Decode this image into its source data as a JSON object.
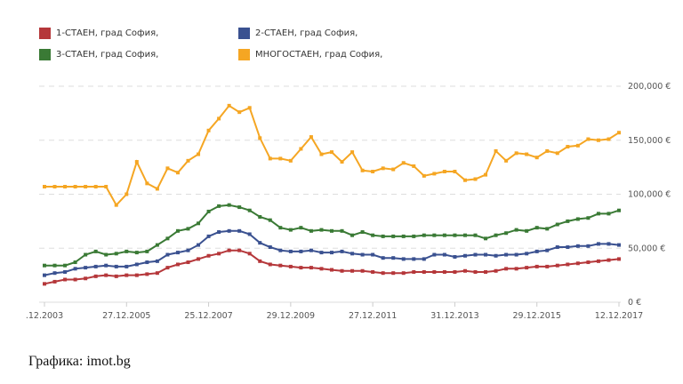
{
  "chart_data": {
    "type": "line",
    "title": "",
    "xlabel": "",
    "ylabel": "",
    "ylim": [
      0,
      200000
    ],
    "y_ticks": [
      0,
      50000,
      100000,
      150000,
      200000
    ],
    "y_tick_labels": [
      "0 €",
      "50,000 €",
      "100,000 €",
      "150,000 €",
      "200,000 €"
    ],
    "x_tick_labels": [
      {
        "index": 0,
        "label": ".12.2003"
      },
      {
        "index": 8,
        "label": "27.12.2005"
      },
      {
        "index": 16,
        "label": "25.12.2007"
      },
      {
        "index": 24,
        "label": "29.12.2009"
      },
      {
        "index": 32,
        "label": "27.12.2011"
      },
      {
        "index": 40,
        "label": "31.12.2013"
      },
      {
        "index": 48,
        "label": "29.12.2015"
      },
      {
        "index": 56,
        "label": "12.12.2017"
      }
    ],
    "grid": true,
    "legend_position": "top",
    "series": [
      {
        "name": "1-СТАЕН, град София,",
        "color": "#b5373a",
        "values": [
          17000,
          19000,
          21000,
          21000,
          22000,
          24000,
          25000,
          24000,
          25000,
          25000,
          26000,
          27000,
          32000,
          35000,
          37000,
          40000,
          43000,
          45000,
          48000,
          48000,
          45000,
          38000,
          35000,
          34000,
          33000,
          32000,
          32000,
          31000,
          30000,
          29000,
          29000,
          29000,
          28000,
          27000,
          27000,
          27000,
          28000,
          28000,
          28000,
          28000,
          28000,
          29000,
          28000,
          28000,
          29000,
          31000,
          31000,
          32000,
          33000,
          33000,
          34000,
          35000,
          36000,
          37000,
          38000,
          39000,
          40000
        ]
      },
      {
        "name": "2-СТАЕН, град София,",
        "color": "#3a5190",
        "values": [
          25000,
          27000,
          28000,
          31000,
          32000,
          33000,
          34000,
          33000,
          33000,
          35000,
          37000,
          38000,
          44000,
          46000,
          48000,
          53000,
          61000,
          65000,
          66000,
          66000,
          63000,
          55000,
          51000,
          48000,
          47000,
          47000,
          48000,
          46000,
          46000,
          47000,
          45000,
          44000,
          44000,
          41000,
          41000,
          40000,
          40000,
          40000,
          44000,
          44000,
          42000,
          43000,
          44000,
          44000,
          43000,
          44000,
          44000,
          45000,
          47000,
          48000,
          51000,
          51000,
          52000,
          52000,
          54000,
          54000,
          53000
        ]
      },
      {
        "name": "3-СТАЕН, град София,",
        "color": "#3a7a35",
        "values": [
          34000,
          34000,
          34000,
          37000,
          44000,
          47000,
          44000,
          45000,
          47000,
          46000,
          47000,
          53000,
          59000,
          66000,
          68000,
          73000,
          84000,
          89000,
          90000,
          88000,
          85000,
          79000,
          76000,
          69000,
          67000,
          69000,
          66000,
          67000,
          66000,
          66000,
          62000,
          65000,
          62000,
          61000,
          61000,
          61000,
          61000,
          62000,
          62000,
          62000,
          62000,
          62000,
          62000,
          59000,
          62000,
          64000,
          67000,
          66000,
          69000,
          68000,
          72000,
          75000,
          77000,
          78000,
          82000,
          82000,
          85000
        ]
      },
      {
        "name": "МНОГОСТАЕН, град София,",
        "color": "#f5a623",
        "values": [
          107000,
          107000,
          107000,
          107000,
          107000,
          107000,
          107000,
          90000,
          100000,
          130000,
          110000,
          105000,
          124000,
          120000,
          131000,
          137000,
          159000,
          170000,
          182000,
          176000,
          180000,
          152000,
          133000,
          133000,
          131000,
          142000,
          153000,
          137000,
          139000,
          130000,
          139000,
          122000,
          121000,
          124000,
          123000,
          129000,
          126000,
          117000,
          119000,
          121000,
          121000,
          113000,
          114000,
          118000,
          140000,
          131000,
          138000,
          137000,
          134000,
          140000,
          138000,
          144000,
          145000,
          151000,
          150000,
          151000,
          157000
        ]
      }
    ]
  },
  "source": "Графика: imot.bg"
}
